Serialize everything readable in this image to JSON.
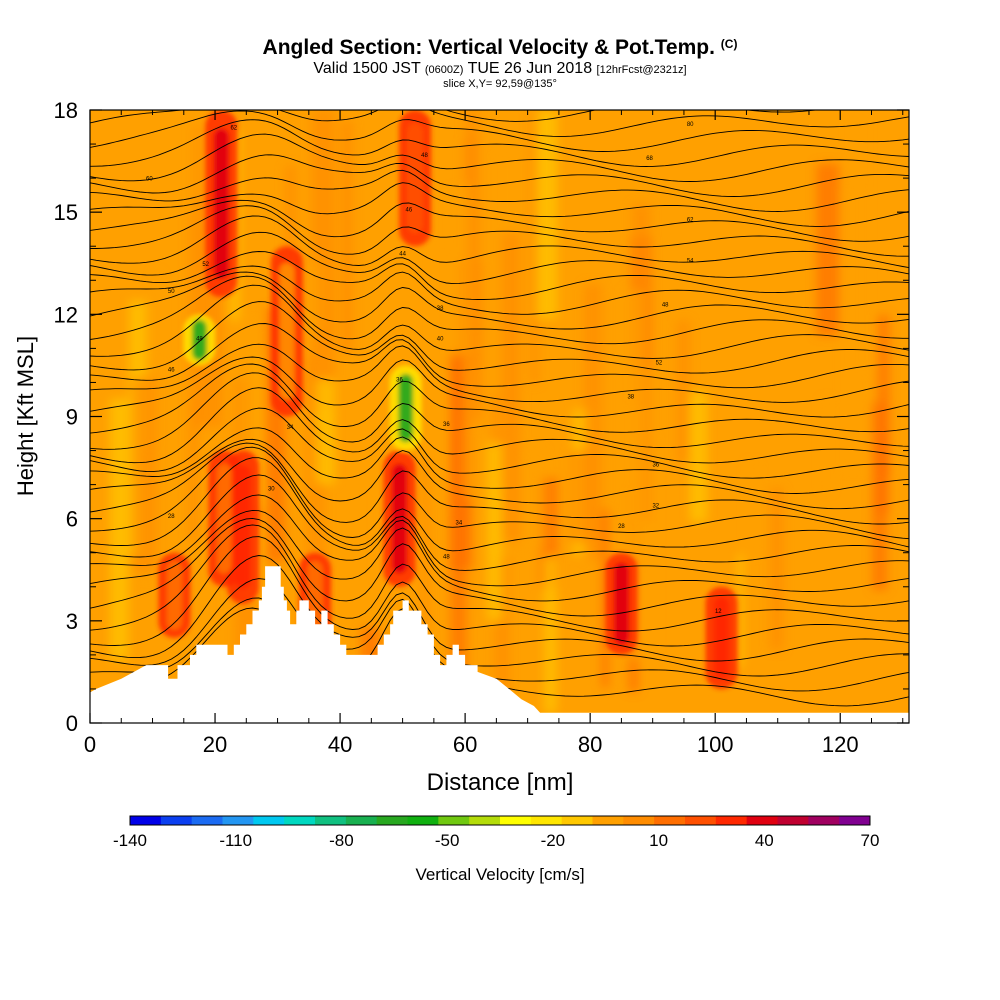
{
  "header": {
    "title": "Angled Section: Vertical Velocity & Pot.Temp.",
    "copyright": "(C)",
    "valid_prefix": "Valid 1500 JST",
    "valid_z": "(0600Z)",
    "valid_date": "TUE 26 Jun 2018",
    "forecast": "[12hrFcst@2321z]",
    "slice": "slice X,Y= 92,59@135°"
  },
  "chart_data": {
    "type": "heatmap",
    "title": "Angled Section: Vertical Velocity & Pot.Temp.",
    "xlabel": "Distance [nm]",
    "ylabel": "Height [Kft MSL]",
    "xlim": [
      0,
      131
    ],
    "ylim": [
      0,
      18
    ],
    "x_ticks": [
      0,
      20,
      40,
      60,
      80,
      100,
      120
    ],
    "y_ticks": [
      0,
      3,
      6,
      9,
      12,
      15,
      18
    ],
    "colorbar": {
      "label": "Vertical Velocity [cm/s]",
      "min": -140,
      "max": 70,
      "step": 10,
      "tick_values": [
        -140,
        -110,
        -80,
        -50,
        -20,
        10,
        40,
        70
      ],
      "colors": [
        "#0000e8",
        "#0b3ff0",
        "#1b6bf2",
        "#2396f2",
        "#00c8f0",
        "#00d8c0",
        "#10c080",
        "#18b050",
        "#28a820",
        "#10b010",
        "#70c810",
        "#b4dc0a",
        "#ffff00",
        "#ffe600",
        "#ffc800",
        "#ffa000",
        "#ff8c00",
        "#ff6e00",
        "#ff5000",
        "#ff2800",
        "#e00010",
        "#c00030",
        "#a00060",
        "#800090"
      ]
    },
    "velocity_cores": [
      {
        "x": 21,
        "y_bottom": 12.5,
        "y_top": 18,
        "value": 60
      },
      {
        "x": 24.5,
        "y_bottom": 3.5,
        "y_top": 8,
        "value": 50
      },
      {
        "x": 21.5,
        "y_bottom": 4,
        "y_top": 8,
        "value": 30
      },
      {
        "x": 13.5,
        "y_bottom": 2.5,
        "y_top": 5,
        "value": 30
      },
      {
        "x": 31.5,
        "y_bottom": 9,
        "y_top": 14,
        "value": 20
      },
      {
        "x": 49.5,
        "y_bottom": 4,
        "y_top": 8,
        "value": 60
      },
      {
        "x": 52,
        "y_bottom": 14,
        "y_top": 18,
        "value": 40
      },
      {
        "x": 85,
        "y_bottom": 2,
        "y_top": 5,
        "value": 60
      },
      {
        "x": 101,
        "y_bottom": 1,
        "y_top": 4,
        "value": 50
      },
      {
        "x": 36,
        "y_bottom": 2.5,
        "y_top": 5,
        "value": 30
      },
      {
        "x": 17.5,
        "y_bottom": 10.5,
        "y_top": 12,
        "value": -60
      },
      {
        "x": 50.5,
        "y_bottom": 8,
        "y_top": 10.5,
        "value": -60
      }
    ],
    "isentrope_labels": [
      {
        "x": 23,
        "y": 17.5,
        "value": "62"
      },
      {
        "x": 9.5,
        "y": 16,
        "value": "60"
      },
      {
        "x": 18.5,
        "y": 13.5,
        "value": "52"
      },
      {
        "x": 13,
        "y": 12.7,
        "value": "50"
      },
      {
        "x": 17.5,
        "y": 11.3,
        "value": "48"
      },
      {
        "x": 13,
        "y": 10.4,
        "value": "46"
      },
      {
        "x": 32,
        "y": 8.7,
        "value": "34"
      },
      {
        "x": 29,
        "y": 6.9,
        "value": "30"
      },
      {
        "x": 13,
        "y": 6.1,
        "value": "28"
      },
      {
        "x": 53.5,
        "y": 16.7,
        "value": "48"
      },
      {
        "x": 51,
        "y": 15.1,
        "value": "46"
      },
      {
        "x": 50,
        "y": 13.8,
        "value": "44"
      },
      {
        "x": 56,
        "y": 12.2,
        "value": "38"
      },
      {
        "x": 56,
        "y": 11.3,
        "value": "40"
      },
      {
        "x": 49.5,
        "y": 10.1,
        "value": "36"
      },
      {
        "x": 57,
        "y": 8.8,
        "value": "36"
      },
      {
        "x": 59,
        "y": 5.9,
        "value": "34"
      },
      {
        "x": 57,
        "y": 4.9,
        "value": "48"
      },
      {
        "x": 96,
        "y": 17.6,
        "value": "80"
      },
      {
        "x": 89.5,
        "y": 16.6,
        "value": "68"
      },
      {
        "x": 96,
        "y": 14.8,
        "value": "62"
      },
      {
        "x": 96,
        "y": 13.6,
        "value": "54"
      },
      {
        "x": 92,
        "y": 12.3,
        "value": "48"
      },
      {
        "x": 91,
        "y": 10.6,
        "value": "52"
      },
      {
        "x": 86.5,
        "y": 9.6,
        "value": "38"
      },
      {
        "x": 90.5,
        "y": 7.6,
        "value": "36"
      },
      {
        "x": 90.5,
        "y": 6.4,
        "value": "32"
      },
      {
        "x": 85,
        "y": 5.8,
        "value": "28"
      },
      {
        "x": 100.5,
        "y": 3.3,
        "value": "12"
      }
    ],
    "terrain": [
      [
        0,
        0.9
      ],
      [
        1,
        1
      ],
      [
        5,
        1.3
      ],
      [
        9,
        1.7
      ],
      [
        12.5,
        1.7
      ],
      [
        12.5,
        1.3
      ],
      [
        14,
        1.3
      ],
      [
        14,
        1.7
      ],
      [
        16,
        1.7
      ],
      [
        16,
        2
      ],
      [
        17,
        2
      ],
      [
        17,
        2.3
      ],
      [
        22,
        2.3
      ],
      [
        22,
        2
      ],
      [
        23,
        2
      ],
      [
        23,
        2.3
      ],
      [
        24,
        2.3
      ],
      [
        24,
        2.6
      ],
      [
        25,
        2.6
      ],
      [
        25,
        2.9
      ],
      [
        26,
        2.9
      ],
      [
        26,
        3.3
      ],
      [
        27,
        3.3
      ],
      [
        27,
        3.6
      ],
      [
        27.5,
        3.6
      ],
      [
        27.5,
        4
      ],
      [
        28,
        4
      ],
      [
        28,
        4.6
      ],
      [
        30.5,
        4.6
      ],
      [
        30.5,
        4
      ],
      [
        31,
        4
      ],
      [
        31,
        3.6
      ],
      [
        31.5,
        3.6
      ],
      [
        31.5,
        3.3
      ],
      [
        32,
        3.3
      ],
      [
        32,
        2.9
      ],
      [
        33,
        2.9
      ],
      [
        33,
        3.3
      ],
      [
        33.5,
        3.3
      ],
      [
        33.5,
        3.6
      ],
      [
        35,
        3.6
      ],
      [
        35,
        3.3
      ],
      [
        36,
        3.3
      ],
      [
        36,
        2.9
      ],
      [
        37,
        2.9
      ],
      [
        37,
        3.3
      ],
      [
        38,
        3.3
      ],
      [
        38,
        2.9
      ],
      [
        39,
        2.9
      ],
      [
        39,
        2.6
      ],
      [
        40,
        2.6
      ],
      [
        40,
        2.3
      ],
      [
        41,
        2.3
      ],
      [
        41,
        2
      ],
      [
        46,
        2
      ],
      [
        46,
        2.3
      ],
      [
        47,
        2.3
      ],
      [
        47,
        2.6
      ],
      [
        48,
        2.6
      ],
      [
        48,
        2.9
      ],
      [
        48.5,
        2.9
      ],
      [
        48.5,
        3.3
      ],
      [
        50,
        3.3
      ],
      [
        50,
        3.6
      ],
      [
        51,
        3.6
      ],
      [
        51,
        3.3
      ],
      [
        53,
        3.3
      ],
      [
        53,
        2.9
      ],
      [
        54,
        2.9
      ],
      [
        54,
        2.6
      ],
      [
        55,
        2.6
      ],
      [
        55,
        2
      ],
      [
        56,
        2
      ],
      [
        56,
        1.7
      ],
      [
        57,
        1.7
      ],
      [
        57,
        2
      ],
      [
        58,
        2
      ],
      [
        58,
        2.3
      ],
      [
        59,
        2.3
      ],
      [
        59,
        2
      ],
      [
        60,
        2
      ],
      [
        60,
        1.7
      ],
      [
        62,
        1.7
      ],
      [
        62,
        1.5
      ],
      [
        65,
        1.3
      ],
      [
        67,
        1
      ],
      [
        69,
        0.7
      ],
      [
        71,
        0.5
      ],
      [
        72,
        0.3
      ],
      [
        131,
        0.3
      ]
    ]
  }
}
